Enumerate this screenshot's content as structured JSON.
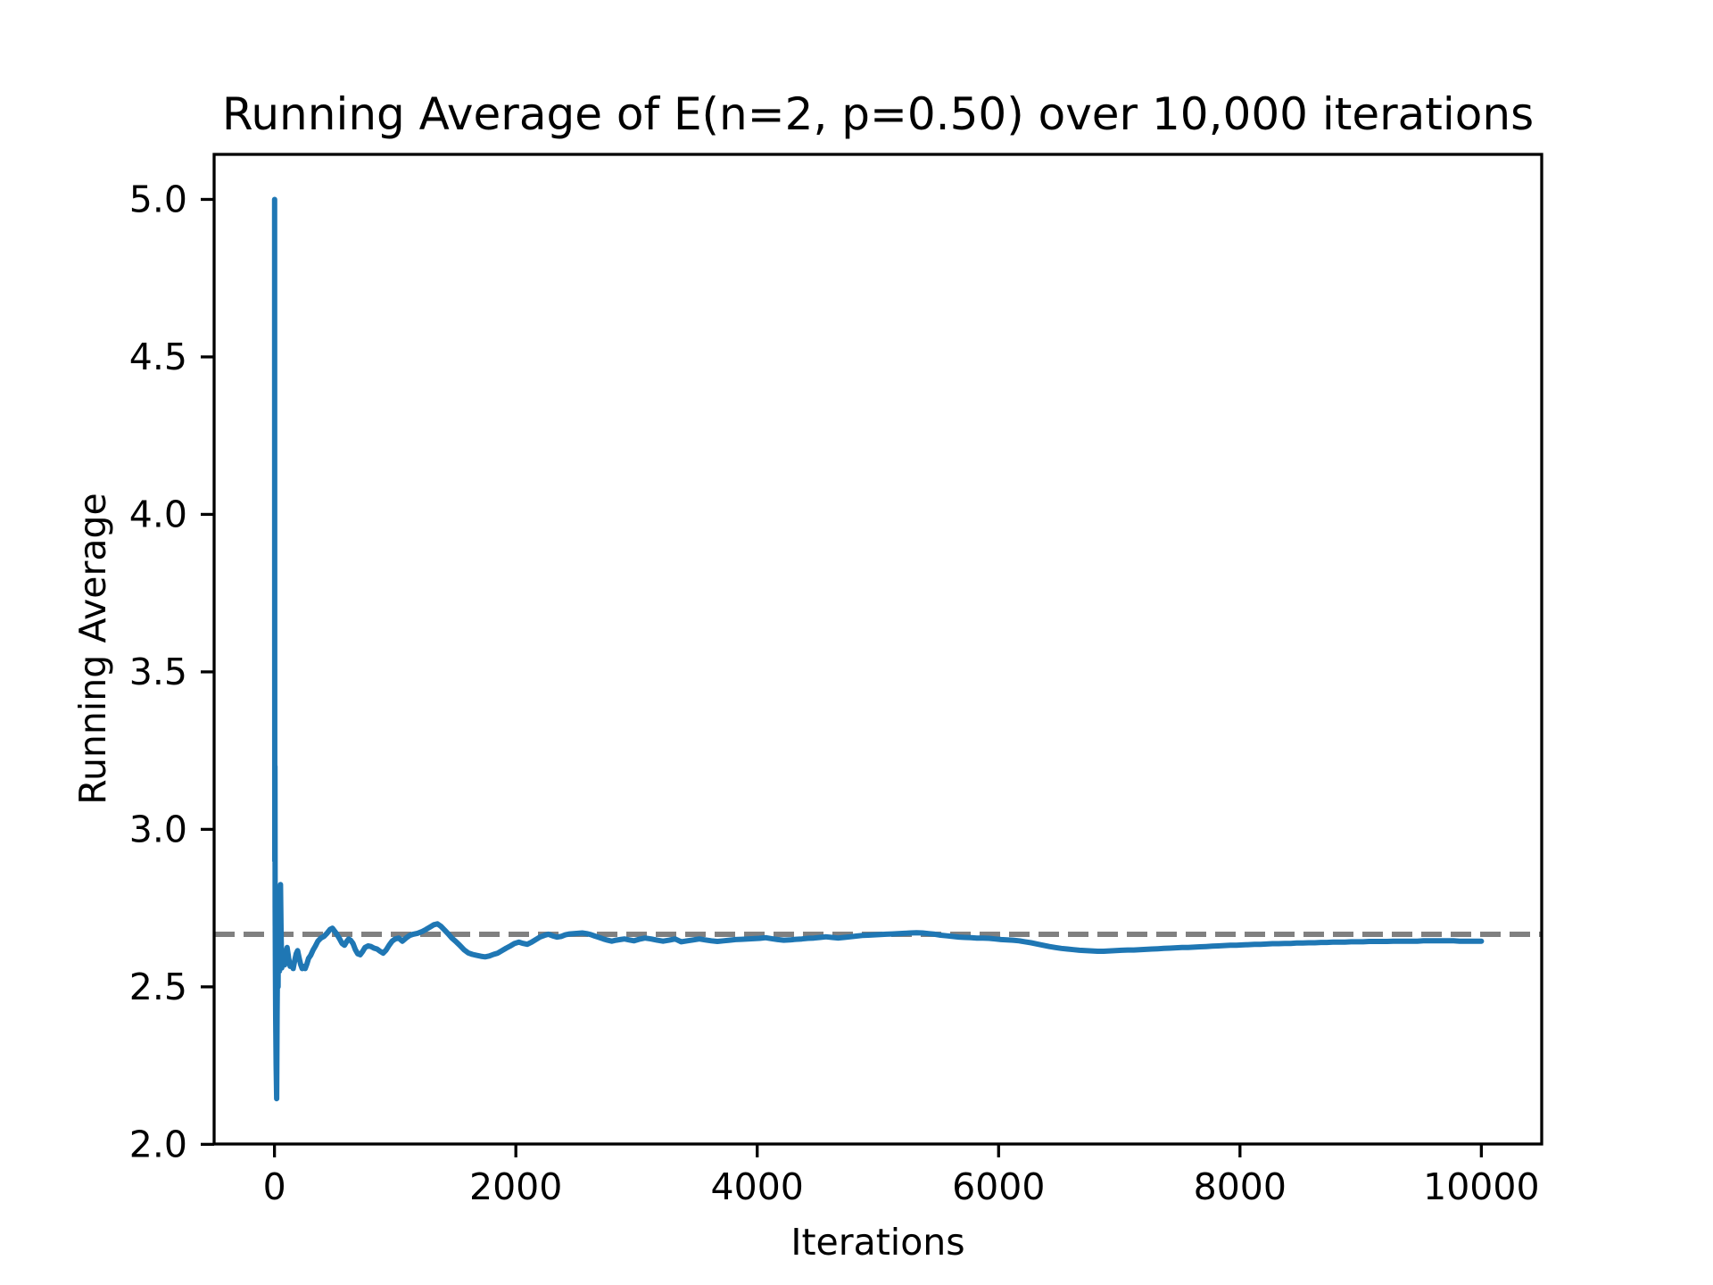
{
  "chart_data": {
    "type": "line",
    "title": "Running Average of E(n=2, p=0.50) over 10,000 iterations",
    "xlabel": "Iterations",
    "ylabel": "Running Average",
    "xlim": [
      -500,
      10500
    ],
    "ylim": [
      2.001,
      5.143
    ],
    "x_ticks": [
      0,
      2000,
      4000,
      6000,
      8000,
      10000
    ],
    "y_ticks": [
      2.0,
      2.5,
      3.0,
      3.5,
      4.0,
      4.5,
      5.0
    ],
    "y_tick_decimals": 1,
    "grid": false,
    "legend": "none",
    "colors": {
      "line": "#1f77b4",
      "expected_line": "#808080",
      "axes": "#000000",
      "background": "#ffffff"
    },
    "expected_value_line": {
      "y": 2.6667,
      "style": "dashed"
    },
    "series": [
      {
        "name": "running_average",
        "points": [
          [
            1,
            5.0
          ],
          [
            2,
            3.57
          ],
          [
            3,
            2.9
          ],
          [
            4,
            3.2
          ],
          [
            6,
            2.75
          ],
          [
            8,
            2.55
          ],
          [
            10,
            2.4
          ],
          [
            14,
            2.25
          ],
          [
            18,
            2.145
          ],
          [
            22,
            2.42
          ],
          [
            26,
            2.62
          ],
          [
            30,
            2.5
          ],
          [
            34,
            2.8
          ],
          [
            38,
            2.65
          ],
          [
            42,
            2.55
          ],
          [
            46,
            2.78
          ],
          [
            50,
            2.825
          ],
          [
            55,
            2.66
          ],
          [
            60,
            2.56
          ],
          [
            68,
            2.615
          ],
          [
            76,
            2.575
          ],
          [
            85,
            2.57
          ],
          [
            95,
            2.61
          ],
          [
            105,
            2.625
          ],
          [
            118,
            2.59
          ],
          [
            130,
            2.565
          ],
          [
            142,
            2.575
          ],
          [
            155,
            2.558
          ],
          [
            168,
            2.585
          ],
          [
            180,
            2.605
          ],
          [
            192,
            2.615
          ],
          [
            205,
            2.59
          ],
          [
            218,
            2.57
          ],
          [
            230,
            2.558
          ],
          [
            242,
            2.565
          ],
          [
            255,
            2.558
          ],
          [
            268,
            2.572
          ],
          [
            282,
            2.59
          ],
          [
            300,
            2.6
          ],
          [
            320,
            2.617
          ],
          [
            340,
            2.63
          ],
          [
            360,
            2.645
          ],
          [
            385,
            2.655
          ],
          [
            410,
            2.66
          ],
          [
            435,
            2.67
          ],
          [
            460,
            2.682
          ],
          [
            480,
            2.686
          ],
          [
            500,
            2.676
          ],
          [
            520,
            2.665
          ],
          [
            540,
            2.652
          ],
          [
            560,
            2.638
          ],
          [
            580,
            2.632
          ],
          [
            600,
            2.645
          ],
          [
            615,
            2.652
          ],
          [
            630,
            2.648
          ],
          [
            650,
            2.638
          ],
          [
            670,
            2.618
          ],
          [
            690,
            2.605
          ],
          [
            710,
            2.602
          ],
          [
            730,
            2.612
          ],
          [
            750,
            2.625
          ],
          [
            775,
            2.63
          ],
          [
            800,
            2.628
          ],
          [
            825,
            2.623
          ],
          [
            850,
            2.62
          ],
          [
            875,
            2.613
          ],
          [
            900,
            2.607
          ],
          [
            925,
            2.617
          ],
          [
            950,
            2.632
          ],
          [
            975,
            2.645
          ],
          [
            1000,
            2.652
          ],
          [
            1030,
            2.655
          ],
          [
            1060,
            2.645
          ],
          [
            1090,
            2.655
          ],
          [
            1120,
            2.663
          ],
          [
            1150,
            2.667
          ],
          [
            1185,
            2.67
          ],
          [
            1220,
            2.675
          ],
          [
            1255,
            2.682
          ],
          [
            1290,
            2.69
          ],
          [
            1320,
            2.697
          ],
          [
            1350,
            2.7
          ],
          [
            1380,
            2.692
          ],
          [
            1410,
            2.68
          ],
          [
            1440,
            2.668
          ],
          [
            1470,
            2.655
          ],
          [
            1500,
            2.645
          ],
          [
            1535,
            2.632
          ],
          [
            1570,
            2.618
          ],
          [
            1605,
            2.608
          ],
          [
            1640,
            2.603
          ],
          [
            1675,
            2.6
          ],
          [
            1710,
            2.597
          ],
          [
            1745,
            2.595
          ],
          [
            1780,
            2.598
          ],
          [
            1815,
            2.603
          ],
          [
            1850,
            2.607
          ],
          [
            1885,
            2.615
          ],
          [
            1920,
            2.623
          ],
          [
            1955,
            2.63
          ],
          [
            1990,
            2.638
          ],
          [
            2025,
            2.642
          ],
          [
            2060,
            2.638
          ],
          [
            2095,
            2.635
          ],
          [
            2130,
            2.642
          ],
          [
            2165,
            2.65
          ],
          [
            2200,
            2.658
          ],
          [
            2235,
            2.663
          ],
          [
            2270,
            2.667
          ],
          [
            2305,
            2.662
          ],
          [
            2340,
            2.658
          ],
          [
            2375,
            2.66
          ],
          [
            2410,
            2.665
          ],
          [
            2445,
            2.668
          ],
          [
            2480,
            2.669
          ],
          [
            2515,
            2.67
          ],
          [
            2550,
            2.671
          ],
          [
            2585,
            2.669
          ],
          [
            2620,
            2.666
          ],
          [
            2655,
            2.661
          ],
          [
            2690,
            2.657
          ],
          [
            2725,
            2.652
          ],
          [
            2760,
            2.648
          ],
          [
            2795,
            2.645
          ],
          [
            2830,
            2.648
          ],
          [
            2865,
            2.65
          ],
          [
            2900,
            2.652
          ],
          [
            2940,
            2.649
          ],
          [
            2980,
            2.646
          ],
          [
            3020,
            2.651
          ],
          [
            3070,
            2.655
          ],
          [
            3120,
            2.652
          ],
          [
            3170,
            2.648
          ],
          [
            3220,
            2.645
          ],
          [
            3270,
            2.648
          ],
          [
            3320,
            2.652
          ],
          [
            3370,
            2.643
          ],
          [
            3420,
            2.646
          ],
          [
            3470,
            2.649
          ],
          [
            3520,
            2.652
          ],
          [
            3570,
            2.649
          ],
          [
            3620,
            2.646
          ],
          [
            3670,
            2.644
          ],
          [
            3720,
            2.646
          ],
          [
            3770,
            2.648
          ],
          [
            3820,
            2.65
          ],
          [
            3870,
            2.651
          ],
          [
            3920,
            2.652
          ],
          [
            3970,
            2.653
          ],
          [
            4020,
            2.654
          ],
          [
            4070,
            2.656
          ],
          [
            4120,
            2.653
          ],
          [
            4170,
            2.65
          ],
          [
            4220,
            2.648
          ],
          [
            4270,
            2.649
          ],
          [
            4320,
            2.651
          ],
          [
            4370,
            2.652
          ],
          [
            4420,
            2.654
          ],
          [
            4470,
            2.655
          ],
          [
            4520,
            2.657
          ],
          [
            4570,
            2.659
          ],
          [
            4620,
            2.657
          ],
          [
            4670,
            2.655
          ],
          [
            4720,
            2.657
          ],
          [
            4770,
            2.659
          ],
          [
            4820,
            2.661
          ],
          [
            4870,
            2.663
          ],
          [
            4920,
            2.664
          ],
          [
            4970,
            2.665
          ],
          [
            5020,
            2.666
          ],
          [
            5070,
            2.667
          ],
          [
            5120,
            2.668
          ],
          [
            5170,
            2.669
          ],
          [
            5220,
            2.67
          ],
          [
            5270,
            2.671
          ],
          [
            5320,
            2.672
          ],
          [
            5370,
            2.671
          ],
          [
            5420,
            2.669
          ],
          [
            5470,
            2.667
          ],
          [
            5520,
            2.664
          ],
          [
            5570,
            2.662
          ],
          [
            5620,
            2.66
          ],
          [
            5670,
            2.658
          ],
          [
            5720,
            2.657
          ],
          [
            5770,
            2.656
          ],
          [
            5820,
            2.655
          ],
          [
            5870,
            2.655
          ],
          [
            5920,
            2.654
          ],
          [
            5970,
            2.652
          ],
          [
            6020,
            2.65
          ],
          [
            6070,
            2.649
          ],
          [
            6120,
            2.648
          ],
          [
            6170,
            2.646
          ],
          [
            6220,
            2.643
          ],
          [
            6270,
            2.64
          ],
          [
            6320,
            2.636
          ],
          [
            6370,
            2.632
          ],
          [
            6420,
            2.628
          ],
          [
            6470,
            2.625
          ],
          [
            6520,
            2.622
          ],
          [
            6570,
            2.62
          ],
          [
            6620,
            2.618
          ],
          [
            6670,
            2.616
          ],
          [
            6720,
            2.615
          ],
          [
            6770,
            2.614
          ],
          [
            6820,
            2.613
          ],
          [
            6870,
            2.613
          ],
          [
            6920,
            2.614
          ],
          [
            6970,
            2.615
          ],
          [
            7020,
            2.616
          ],
          [
            7070,
            2.617
          ],
          [
            7120,
            2.617
          ],
          [
            7170,
            2.618
          ],
          [
            7220,
            2.619
          ],
          [
            7270,
            2.62
          ],
          [
            7320,
            2.621
          ],
          [
            7370,
            2.622
          ],
          [
            7420,
            2.623
          ],
          [
            7470,
            2.624
          ],
          [
            7520,
            2.625
          ],
          [
            7570,
            2.625
          ],
          [
            7620,
            2.626
          ],
          [
            7670,
            2.627
          ],
          [
            7720,
            2.628
          ],
          [
            7770,
            2.629
          ],
          [
            7820,
            2.63
          ],
          [
            7870,
            2.631
          ],
          [
            7920,
            2.632
          ],
          [
            7970,
            2.632
          ],
          [
            8020,
            2.633
          ],
          [
            8070,
            2.634
          ],
          [
            8120,
            2.635
          ],
          [
            8170,
            2.635
          ],
          [
            8220,
            2.636
          ],
          [
            8270,
            2.637
          ],
          [
            8320,
            2.637
          ],
          [
            8370,
            2.638
          ],
          [
            8420,
            2.638
          ],
          [
            8470,
            2.639
          ],
          [
            8520,
            2.639
          ],
          [
            8570,
            2.64
          ],
          [
            8620,
            2.64
          ],
          [
            8670,
            2.641
          ],
          [
            8720,
            2.641
          ],
          [
            8770,
            2.642
          ],
          [
            8820,
            2.642
          ],
          [
            8870,
            2.642
          ],
          [
            8920,
            2.643
          ],
          [
            8970,
            2.643
          ],
          [
            9020,
            2.643
          ],
          [
            9070,
            2.644
          ],
          [
            9120,
            2.644
          ],
          [
            9170,
            2.644
          ],
          [
            9220,
            2.644
          ],
          [
            9270,
            2.645
          ],
          [
            9320,
            2.645
          ],
          [
            9370,
            2.645
          ],
          [
            9420,
            2.645
          ],
          [
            9470,
            2.645
          ],
          [
            9520,
            2.646
          ],
          [
            9570,
            2.646
          ],
          [
            9620,
            2.646
          ],
          [
            9670,
            2.646
          ],
          [
            9720,
            2.646
          ],
          [
            9770,
            2.646
          ],
          [
            9820,
            2.645
          ],
          [
            9870,
            2.645
          ],
          [
            9920,
            2.645
          ],
          [
            9970,
            2.645
          ],
          [
            10000,
            2.645
          ]
        ]
      }
    ]
  }
}
